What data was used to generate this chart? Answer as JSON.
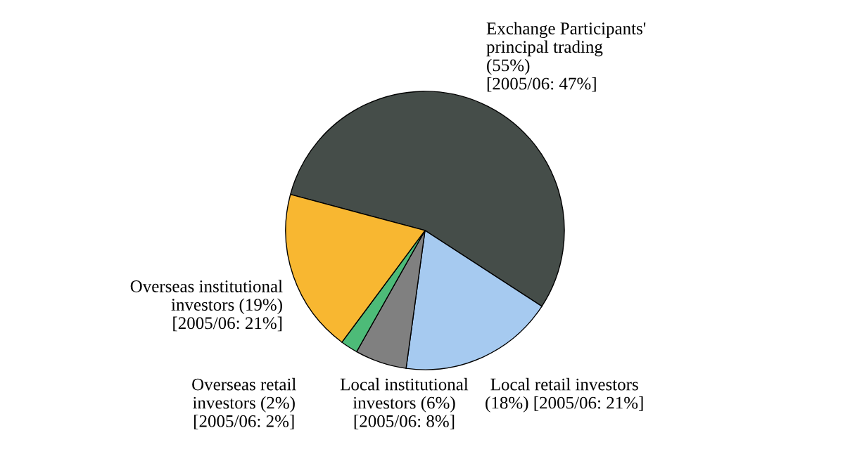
{
  "chart_data": {
    "type": "pie",
    "categories": [
      "Exchange Participants'\nprincipal trading\n(55%)\n[2005/06: 47%]",
      "Local retail investors\n(18%) [2005/06: 21%]",
      "Local institutional\ninvestors (6%)\n[2005/06: 8%]",
      "Overseas retail\ninvestors (2%)\n[2005/06: 2%]",
      "Overseas institutional\ninvestors (19%)\n[2005/06: 21%]"
    ],
    "values": [
      55,
      18,
      6,
      2,
      19
    ],
    "colors": [
      "#454d49",
      "#a6caf0",
      "#808080",
      "#4dbb78",
      "#f8b731"
    ]
  }
}
